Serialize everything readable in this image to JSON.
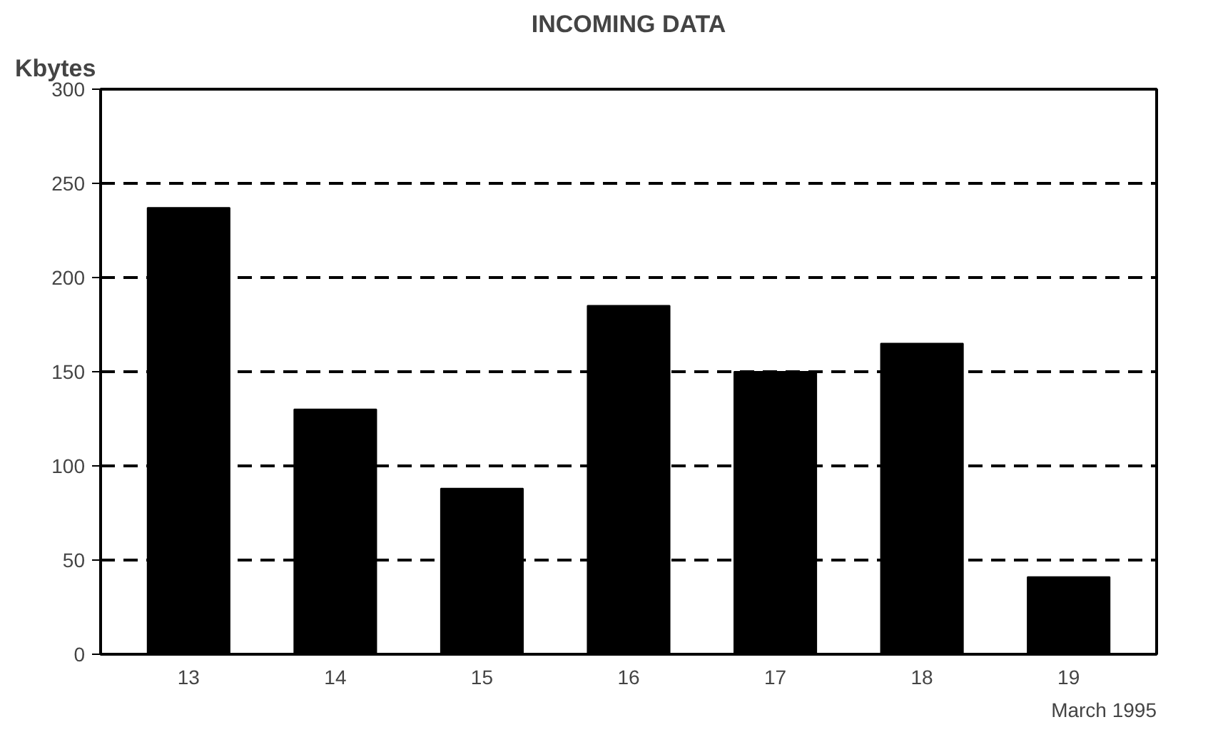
{
  "chart_data": {
    "type": "bar",
    "title": "INCOMING DATA",
    "ylabel": "Kbytes",
    "categories": [
      "13",
      "14",
      "15",
      "16",
      "17",
      "18",
      "19"
    ],
    "values": [
      237,
      130,
      88,
      185,
      150,
      165,
      41
    ],
    "color": "#000000",
    "ylim": [
      0,
      300
    ],
    "yticks": [
      0,
      50,
      100,
      150,
      200,
      250,
      300
    ],
    "grid": "y",
    "annotations": [
      "March 1995"
    ]
  }
}
